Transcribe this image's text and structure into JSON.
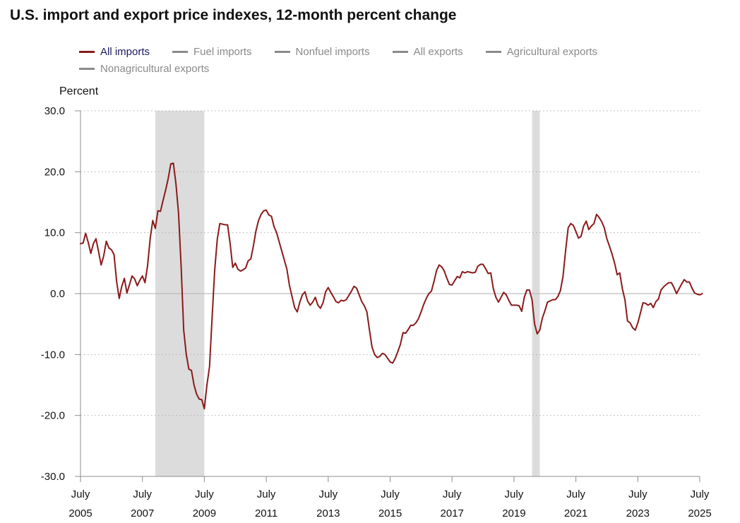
{
  "title": "U.S. import and export price indexes, 12-month percent change",
  "legend": [
    {
      "label": "All imports",
      "active": true
    },
    {
      "label": "Fuel imports",
      "active": false
    },
    {
      "label": "Nonfuel imports",
      "active": false
    },
    {
      "label": "All exports",
      "active": false
    },
    {
      "label": "Agricultural exports",
      "active": false
    },
    {
      "label": "Nonagricultural exports",
      "active": false
    }
  ],
  "chart_data": {
    "type": "line",
    "title": "U.S. import and export price indexes, 12-month percent change",
    "ylabel": "Percent",
    "xlabel": "",
    "ylim": [
      -30,
      30
    ],
    "yticks": [
      30,
      20,
      10,
      0,
      -10,
      -20,
      -30
    ],
    "ytick_labels": [
      "30.0",
      "20.0",
      "10.0",
      "0.0",
      "-10.0",
      "-20.0",
      "-30.0"
    ],
    "xlim": [
      "2005-07",
      "2025-07"
    ],
    "xticks": [
      {
        "date": "2005-07",
        "month": "July",
        "year": "2005"
      },
      {
        "date": "2007-07",
        "month": "July",
        "year": "2007"
      },
      {
        "date": "2009-07",
        "month": "July",
        "year": "2009"
      },
      {
        "date": "2011-07",
        "month": "July",
        "year": "2011"
      },
      {
        "date": "2013-07",
        "month": "July",
        "year": "2013"
      },
      {
        "date": "2015-07",
        "month": "July",
        "year": "2015"
      },
      {
        "date": "2017-07",
        "month": "July",
        "year": "2017"
      },
      {
        "date": "2019-07",
        "month": "July",
        "year": "2019"
      },
      {
        "date": "2021-07",
        "month": "July",
        "year": "2021"
      },
      {
        "date": "2023-07",
        "month": "July",
        "year": "2023"
      },
      {
        "date": "2025-07",
        "month": "July",
        "year": "2025"
      }
    ],
    "grid": true,
    "legend_position": "top",
    "recessions": [
      {
        "start": "2007-12",
        "end": "2009-06"
      },
      {
        "start": "2020-02",
        "end": "2020-04"
      }
    ],
    "series": [
      {
        "name": "All imports",
        "color": "#8b1a1a",
        "start": "2005-07",
        "frequency": "monthly",
        "values": [
          8.2,
          8.3,
          9.9,
          8.4,
          6.6,
          8.2,
          9.0,
          6.9,
          4.7,
          6.2,
          8.6,
          7.5,
          7.2,
          6.4,
          2.0,
          -0.8,
          1.2,
          2.5,
          0.1,
          1.5,
          2.9,
          2.4,
          1.3,
          2.2,
          2.9,
          1.8,
          4.6,
          9.0,
          12.0,
          10.7,
          13.6,
          13.5,
          15.3,
          17.0,
          18.9,
          21.3,
          21.4,
          18.0,
          13.2,
          4.5,
          -6.0,
          -10.0,
          -12.4,
          -12.6,
          -15.0,
          -16.5,
          -17.3,
          -17.4,
          -18.9,
          -15.0,
          -12.0,
          -4.0,
          3.8,
          8.9,
          11.5,
          11.4,
          11.3,
          11.3,
          8.2,
          4.3,
          5.0,
          4.0,
          3.7,
          3.9,
          4.2,
          5.4,
          5.7,
          7.8,
          10.3,
          12.0,
          13.0,
          13.6,
          13.7,
          12.9,
          12.7,
          11.0,
          10.0,
          8.5,
          7.0,
          5.5,
          4.0,
          1.3,
          -0.5,
          -2.3,
          -3.0,
          -1.4,
          -0.2,
          0.3,
          -1.2,
          -1.9,
          -1.4,
          -0.6,
          -1.9,
          -2.4,
          -1.5,
          0.3,
          1.0,
          0.2,
          -0.5,
          -1.3,
          -1.5,
          -1.1,
          -1.2,
          -1.0,
          -0.3,
          0.4,
          1.2,
          0.9,
          -0.2,
          -1.3,
          -2.0,
          -3.0,
          -6.0,
          -8.8,
          -10.0,
          -10.5,
          -10.3,
          -9.8,
          -10.0,
          -10.6,
          -11.2,
          -11.4,
          -10.6,
          -9.5,
          -8.3,
          -6.4,
          -6.5,
          -5.9,
          -5.2,
          -5.2,
          -4.8,
          -4.1,
          -3.0,
          -1.8,
          -0.8,
          0.0,
          0.4,
          2.0,
          3.8,
          4.7,
          4.4,
          3.7,
          2.5,
          1.5,
          1.4,
          2.1,
          2.8,
          2.6,
          3.6,
          3.4,
          3.6,
          3.5,
          3.4,
          3.5,
          4.5,
          4.8,
          4.8,
          4.1,
          3.3,
          3.4,
          0.8,
          -0.6,
          -1.4,
          -0.6,
          0.2,
          -0.2,
          -1.1,
          -1.9,
          -1.9,
          -1.9,
          -2.0,
          -2.9,
          -0.6,
          0.6,
          0.6,
          -1.0,
          -5.0,
          -6.6,
          -6.0,
          -4.0,
          -2.8,
          -1.4,
          -1.2,
          -1.0,
          -1.0,
          -0.5,
          0.5,
          2.8,
          7.0,
          10.8,
          11.5,
          11.2,
          10.2,
          9.1,
          9.4,
          11.1,
          11.9,
          10.5,
          11.1,
          11.5,
          13.0,
          12.5,
          11.8,
          10.8,
          9.0,
          7.8,
          6.5,
          5.0,
          3.1,
          3.4,
          0.8,
          -1.0,
          -4.5,
          -4.8,
          -5.6,
          -6.0,
          -4.8,
          -3.2,
          -1.5,
          -1.6,
          -1.9,
          -1.6,
          -2.3,
          -1.3,
          -0.9,
          0.6,
          1.1,
          1.5,
          1.8,
          1.8,
          1.0,
          0.0,
          0.8,
          1.6,
          2.3,
          1.9,
          1.9,
          0.9,
          0.1,
          -0.1,
          -0.2,
          0.0
        ]
      }
    ]
  }
}
